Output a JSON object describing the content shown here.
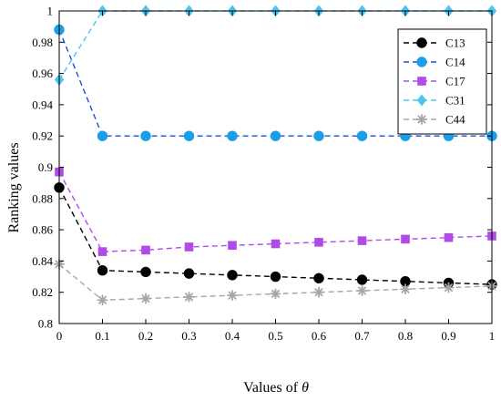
{
  "chart_data": {
    "type": "line",
    "xlabel": "Values of θ",
    "xlabel_prefix": "Values of ",
    "xlabel_symbol": "θ",
    "ylabel": "Ranking values",
    "x": [
      0,
      0.1,
      0.2,
      0.3,
      0.4,
      0.5,
      0.6,
      0.7,
      0.8,
      0.9,
      1
    ],
    "xticks": [
      "0",
      "0.1",
      "0.2",
      "0.3",
      "0.4",
      "0.5",
      "0.6",
      "0.7",
      "0.8",
      "0.9",
      "1"
    ],
    "yticks": [
      "0.8",
      "0.82",
      "0.84",
      "0.86",
      "0.88",
      "0.9",
      "0.92",
      "0.94",
      "0.96",
      "0.98",
      "1"
    ],
    "xlim": [
      0,
      1
    ],
    "ylim": [
      0.8,
      1
    ],
    "grid": false,
    "legend_position": "top-right",
    "series": [
      {
        "name": "C13",
        "color": "#000000",
        "marker": "circle",
        "values": [
          0.887,
          0.834,
          0.833,
          0.832,
          0.831,
          0.83,
          0.829,
          0.828,
          0.827,
          0.826,
          0.825
        ]
      },
      {
        "name": "C14",
        "color": "#1a9ee8",
        "line_color": "#1f4fd8",
        "marker": "circle",
        "values": [
          0.988,
          0.92,
          0.92,
          0.92,
          0.92,
          0.92,
          0.92,
          0.92,
          0.92,
          0.92,
          0.92
        ]
      },
      {
        "name": "C17",
        "color": "#b04be8",
        "marker": "square",
        "values": [
          0.897,
          0.846,
          0.847,
          0.849,
          0.85,
          0.851,
          0.852,
          0.853,
          0.854,
          0.855,
          0.856
        ]
      },
      {
        "name": "C31",
        "color": "#4fc3f0",
        "marker": "diamond",
        "values": [
          0.956,
          1.0,
          1.0,
          1.0,
          1.0,
          1.0,
          1.0,
          1.0,
          1.0,
          1.0,
          1.0
        ]
      },
      {
        "name": "C44",
        "color": "#a6a6a6",
        "marker": "asterisk",
        "values": [
          0.838,
          0.815,
          0.816,
          0.817,
          0.818,
          0.819,
          0.82,
          0.821,
          0.822,
          0.823,
          0.824
        ]
      }
    ]
  }
}
